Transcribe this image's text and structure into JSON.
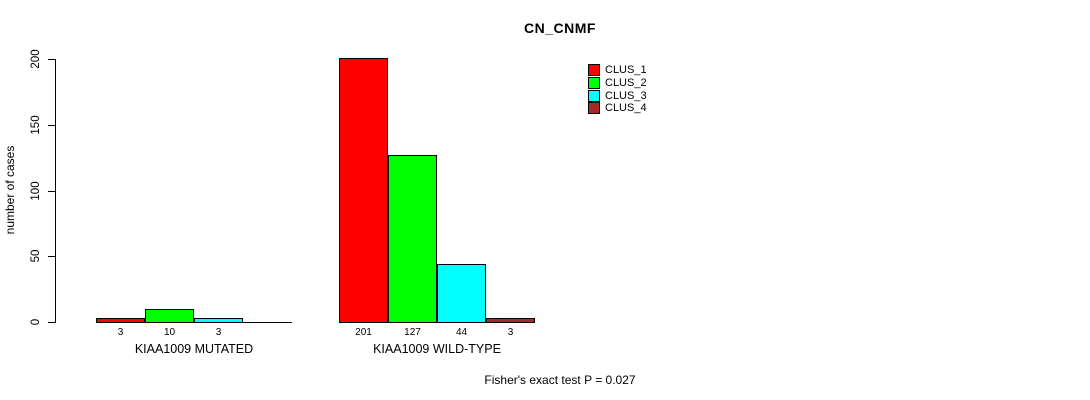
{
  "chart_data": {
    "type": "bar",
    "title": "CN_CNMF",
    "xlabel": "",
    "ylabel": "number of cases",
    "categories": [
      "KIAA1009 MUTATED",
      "KIAA1009 WILD-TYPE"
    ],
    "series": [
      {
        "name": "CLUS_1",
        "color": "#ff0000",
        "values": [
          3,
          201
        ]
      },
      {
        "name": "CLUS_2",
        "color": "#00ff00",
        "values": [
          10,
          127
        ]
      },
      {
        "name": "CLUS_3",
        "color": "#00ffff",
        "values": [
          3,
          44
        ]
      },
      {
        "name": "CLUS_4",
        "color": "#a52a2a",
        "values": [
          0,
          3
        ]
      }
    ],
    "ylim": [
      0,
      200
    ],
    "yticks": [
      0,
      50,
      100,
      150,
      200
    ],
    "grid": false,
    "legend_position": "top-right",
    "bar_value_labels": [
      [
        "3",
        "10",
        "3",
        ""
      ],
      [
        "201",
        "127",
        "44",
        "3"
      ]
    ],
    "annotation": "Fisher's exact test P = 0.027"
  }
}
